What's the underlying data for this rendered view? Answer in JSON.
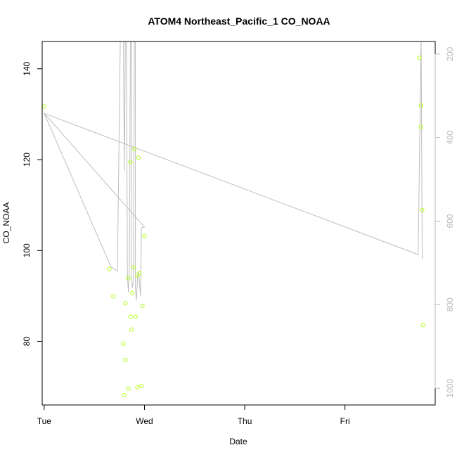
{
  "chart_data": {
    "type": "scatter",
    "title": "ATOM4 Northeast_Pacific_1 CO_NOAA",
    "xlabel": "Date",
    "ylabel": "CO_NOAA",
    "x_ticks": [
      "Tue",
      "Wed",
      "Thu",
      "Fri"
    ],
    "y_ticks": [
      80,
      100,
      120,
      140
    ],
    "y2_ticks": [
      200,
      400,
      600,
      800,
      1000
    ],
    "xlim": [
      -0.02,
      3.9
    ],
    "ylim": [
      66,
      146
    ],
    "y2lim": [
      170,
      1040
    ],
    "y2_reversed": true,
    "point_color": "#b5ff20",
    "line_color": "#bebebe",
    "axis_color": "#000000",
    "y2_color": "#b9b9b9",
    "grid": false,
    "series": [
      {
        "kind": "points",
        "x": [
          0.0,
          0.65,
          0.69,
          0.79,
          0.8,
          0.81,
          0.81,
          0.84,
          0.84,
          0.86,
          0.86,
          0.87,
          0.88,
          0.89,
          0.9,
          0.91,
          0.93,
          0.93,
          0.94,
          0.95,
          0.97,
          0.98,
          1.0,
          3.74,
          3.76,
          3.76,
          3.77,
          3.78
        ],
        "y": [
          131.7,
          95.9,
          89.9,
          79.5,
          68.2,
          75.9,
          88.4,
          93.9,
          69.6,
          119.5,
          85.4,
          82.6,
          90.6,
          96.3,
          122.3,
          85.4,
          69.9,
          94.5,
          120.4,
          95.0,
          70.2,
          87.8,
          103.1,
          142.4,
          131.9,
          127.2,
          108.9,
          83.6
        ]
      },
      {
        "kind": "line",
        "x": [
          0.0,
          1.0,
          0.97,
          0.96,
          0.95,
          0.94,
          0.93,
          0.92,
          0.91,
          0.91,
          0.9,
          0.89,
          0.88,
          0.87,
          0.87,
          0.86,
          0.85,
          0.84,
          0.83,
          0.82,
          0.81,
          0.8,
          0.79,
          0.78,
          0.76,
          0.73,
          0.67,
          0.65,
          0.0,
          3.73,
          3.76,
          3.76,
          3.77,
          3.77
        ],
        "y2": [
          342,
          614,
          616,
          780,
          745,
          720,
          740,
          790,
          760,
          150,
          150,
          740,
          760,
          730,
          150,
          150,
          700,
          770,
          730,
          150,
          150,
          480,
          150,
          150,
          150,
          720,
          710,
          700,
          342,
          680,
          150,
          150,
          690,
          690
        ]
      }
    ]
  }
}
